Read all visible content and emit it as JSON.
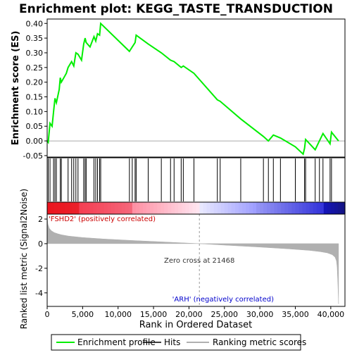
{
  "chart_data": {
    "type": "line",
    "title": "Enrichment plot: KEGG_TASTE_TRANSDUCTION",
    "xlabel": "Rank in Ordered Dataset",
    "ylabel_top": "Enrichment score (ES)",
    "ylabel_bottom": "Ranked list metric (Signal2Noise)",
    "x_ticks": [
      "0",
      "5,000",
      "10,000",
      "15,000",
      "20,000",
      "25,000",
      "30,000",
      "35,000",
      "40,000"
    ],
    "x_tick_values": [
      0,
      5000,
      10000,
      15000,
      20000,
      25000,
      30000,
      35000,
      40000
    ],
    "xlim": [
      0,
      42000
    ],
    "es_y_ticks": [
      "0.40",
      "0.35",
      "0.30",
      "0.25",
      "0.20",
      "0.15",
      "0.10",
      "0.05",
      "0.00",
      "-0.05"
    ],
    "es_y_tick_values": [
      0.4,
      0.35,
      0.3,
      0.25,
      0.2,
      0.15,
      0.1,
      0.05,
      0.0,
      -0.05
    ],
    "es_ylim": [
      -0.055,
      0.415
    ],
    "metric_y_ticks": [
      "2",
      "0",
      "-2",
      "-4"
    ],
    "metric_y_tick_values": [
      2,
      0,
      -2,
      -4
    ],
    "metric_ylim": [
      -5.1,
      2.4
    ],
    "es_line_color": "#00ee00",
    "hit_line_color": "#000000",
    "metric_fill_color": "#b0b0b0",
    "zero_cross_value": 21468,
    "annotations": {
      "zero_cross": "Zero cross at 21468",
      "positive": "'FSHD2' (positively correlated)",
      "negative": "'ARH' (negatively correlated)"
    },
    "series": [
      {
        "name": "Enrichment profile",
        "x": [
          0,
          150,
          400,
          700,
          900,
          1100,
          1300,
          1700,
          1850,
          2000,
          2700,
          2950,
          3450,
          3750,
          4050,
          4350,
          4850,
          5150,
          5350,
          5500,
          6050,
          6600,
          6850,
          7100,
          7400,
          7550,
          11600,
          12000,
          12400,
          12550,
          14250,
          16100,
          17400,
          17900,
          18900,
          19200,
          20700,
          24000,
          24400,
          27300,
          30500,
          31200,
          31900,
          32900,
          35000,
          36100,
          36300,
          36450,
          37800,
          38400,
          38900,
          39900,
          40100,
          41100
        ],
        "y": [
          0.0,
          -0.005,
          0.06,
          0.05,
          0.1,
          0.145,
          0.13,
          0.175,
          0.215,
          0.2,
          0.23,
          0.25,
          0.27,
          0.255,
          0.3,
          0.295,
          0.275,
          0.33,
          0.35,
          0.335,
          0.32,
          0.355,
          0.34,
          0.365,
          0.36,
          0.4,
          0.305,
          0.32,
          0.335,
          0.36,
          0.33,
          0.3,
          0.275,
          0.27,
          0.25,
          0.255,
          0.23,
          0.14,
          0.135,
          0.075,
          0.015,
          0.0,
          0.02,
          0.01,
          -0.02,
          -0.045,
          -0.025,
          0.005,
          -0.03,
          0.0,
          0.025,
          -0.01,
          0.03,
          0.0
        ]
      }
    ],
    "hits_x": [
      150,
      400,
      900,
      1100,
      1300,
      1850,
      2000,
      2950,
      3450,
      3750,
      4050,
      4350,
      5150,
      5350,
      5500,
      6600,
      6850,
      7100,
      7400,
      7550,
      11600,
      12000,
      12400,
      12550,
      14250,
      16100,
      17400,
      17900,
      18900,
      19200,
      20700,
      24000,
      24400,
      27300,
      30500,
      31200,
      31900,
      32900,
      35000,
      36300,
      36450,
      37800,
      38400,
      38900,
      39900,
      40100
    ],
    "metric_profile": {
      "x": [
        0,
        100,
        300,
        600,
        1000,
        1500,
        2000,
        3000,
        5000,
        8000,
        12000,
        16000,
        21468,
        25000,
        30000,
        34000,
        37000,
        38500,
        39500,
        40200,
        40600,
        40800,
        40900,
        41000,
        41100
      ],
      "y": [
        2.2,
        1.6,
        1.25,
        1.05,
        0.9,
        0.8,
        0.72,
        0.62,
        0.5,
        0.38,
        0.26,
        0.15,
        0.0,
        -0.12,
        -0.28,
        -0.42,
        -0.55,
        -0.65,
        -0.75,
        -0.9,
        -1.1,
        -1.4,
        -1.9,
        -3.2,
        -4.9
      ]
    }
  },
  "legend": {
    "items": [
      {
        "label": "Enrichment profile",
        "color": "#00ee00"
      },
      {
        "label": "Hits",
        "color": "#000000"
      },
      {
        "label": "Ranking metric scores",
        "color": "#b0b0b0"
      }
    ]
  }
}
